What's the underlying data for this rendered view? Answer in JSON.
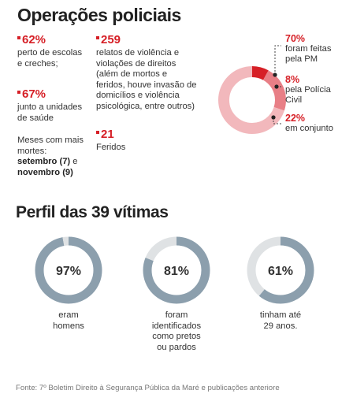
{
  "title": "Operações policiais",
  "stats": [
    {
      "value": "62%",
      "desc": [
        "perto de escolas",
        "e creches;"
      ]
    },
    {
      "value": "67%",
      "desc": [
        "junto a unidades",
        "de saúde"
      ]
    },
    {
      "value": "259",
      "desc": [
        "relatos de violência e",
        "violações de direitos",
        "(além de mortos e",
        "feridos, houve invasão de",
        "domicílios e violência",
        "psicológica, entre outros)"
      ]
    },
    {
      "value": "21",
      "desc": [
        "Feridos"
      ]
    }
  ],
  "months": {
    "label_lines": [
      "Meses com mais",
      "mortes:"
    ],
    "bold1": "setembro (7)",
    "connector": " e",
    "bold2": "novembro (9)"
  },
  "section_title": "Perfil das 39 vítimas",
  "source": "Fonte: 7º Boletim Direito à Segurança Pública da Maré e publicações anteriore",
  "colors": {
    "red": "#d61f26",
    "pink_light": "#f2b8bc",
    "pink_mid": "#e87f86",
    "steel": "#8c9fad",
    "gray_light": "#dfe2e4"
  },
  "chart_data": [
    {
      "type": "pie",
      "labels": [
        "foram feitas pela PM",
        "pela Polícia Civil",
        "em conjunto"
      ],
      "values": [
        70,
        8,
        22
      ],
      "value_labels": [
        "70%",
        "8%",
        "22%"
      ],
      "colors": [
        "#f2b8bc",
        "#d61f26",
        "#e87f86"
      ]
    },
    {
      "type": "pie",
      "value_label": "97%",
      "values": [
        97,
        3
      ],
      "caption": [
        "eram",
        "homens"
      ],
      "colors": [
        "#8c9fad",
        "#dfe2e4"
      ]
    },
    {
      "type": "pie",
      "value_label": "81%",
      "values": [
        81,
        19
      ],
      "caption": [
        "foram",
        "identificados",
        "como pretos",
        "ou pardos"
      ],
      "colors": [
        "#8c9fad",
        "#dfe2e4"
      ]
    },
    {
      "type": "pie",
      "value_label": "61%",
      "values": [
        61,
        39
      ],
      "caption": [
        "tinham até",
        "29 anos."
      ],
      "colors": [
        "#8c9fad",
        "#dfe2e4"
      ]
    }
  ]
}
